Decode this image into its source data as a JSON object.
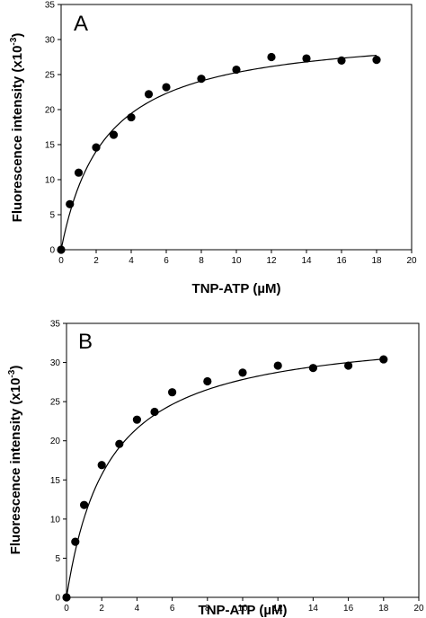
{
  "chart_data": [
    {
      "type": "scatter",
      "panel_label": "A",
      "xlabel": "TNP-ATP (µM)",
      "ylabel": "Fluorescence intensity (x10",
      "ylabel_sup": "-3",
      "ylabel_close": ")",
      "xlim": [
        0,
        20
      ],
      "ylim": [
        0,
        35
      ],
      "x_ticks": [
        0,
        2,
        4,
        6,
        8,
        10,
        12,
        14,
        16,
        18,
        20
      ],
      "y_ticks": [
        0,
        5,
        10,
        15,
        20,
        25,
        30,
        35
      ],
      "grid": false,
      "series": [
        {
          "x": [
            0,
            0.5,
            1,
            2,
            3,
            4,
            5,
            6,
            8,
            10,
            12,
            14,
            16,
            18
          ],
          "y": [
            0,
            6.5,
            11.0,
            14.6,
            16.4,
            18.9,
            22.2,
            23.2,
            24.4,
            25.7,
            27.5,
            27.3,
            27.0,
            27.1
          ]
        }
      ],
      "fit": {
        "model": "hyperbolic",
        "Bmax": 31.6,
        "Kd": 2.5
      }
    },
    {
      "type": "scatter",
      "panel_label": "B",
      "xlabel": "TNP-ATP (µM)",
      "ylabel": "Fluorescence intensity (x10",
      "ylabel_sup": "-3",
      "ylabel_close": ")",
      "xlim": [
        0,
        20
      ],
      "ylim": [
        0,
        35
      ],
      "x_ticks": [
        0,
        2,
        4,
        6,
        8,
        10,
        12,
        14,
        16,
        18,
        20
      ],
      "y_ticks": [
        0,
        5,
        10,
        15,
        20,
        25,
        30,
        35
      ],
      "grid": false,
      "series": [
        {
          "x": [
            0,
            0.5,
            1,
            2,
            3,
            4,
            5,
            6,
            8,
            10,
            12,
            14,
            16,
            18
          ],
          "y": [
            0,
            7.1,
            11.8,
            16.9,
            19.6,
            22.7,
            23.7,
            26.2,
            27.6,
            28.7,
            29.6,
            29.3,
            29.6,
            30.4
          ]
        }
      ],
      "fit": {
        "model": "hyperbolic",
        "Bmax": 34.5,
        "Kd": 2.4
      }
    }
  ]
}
